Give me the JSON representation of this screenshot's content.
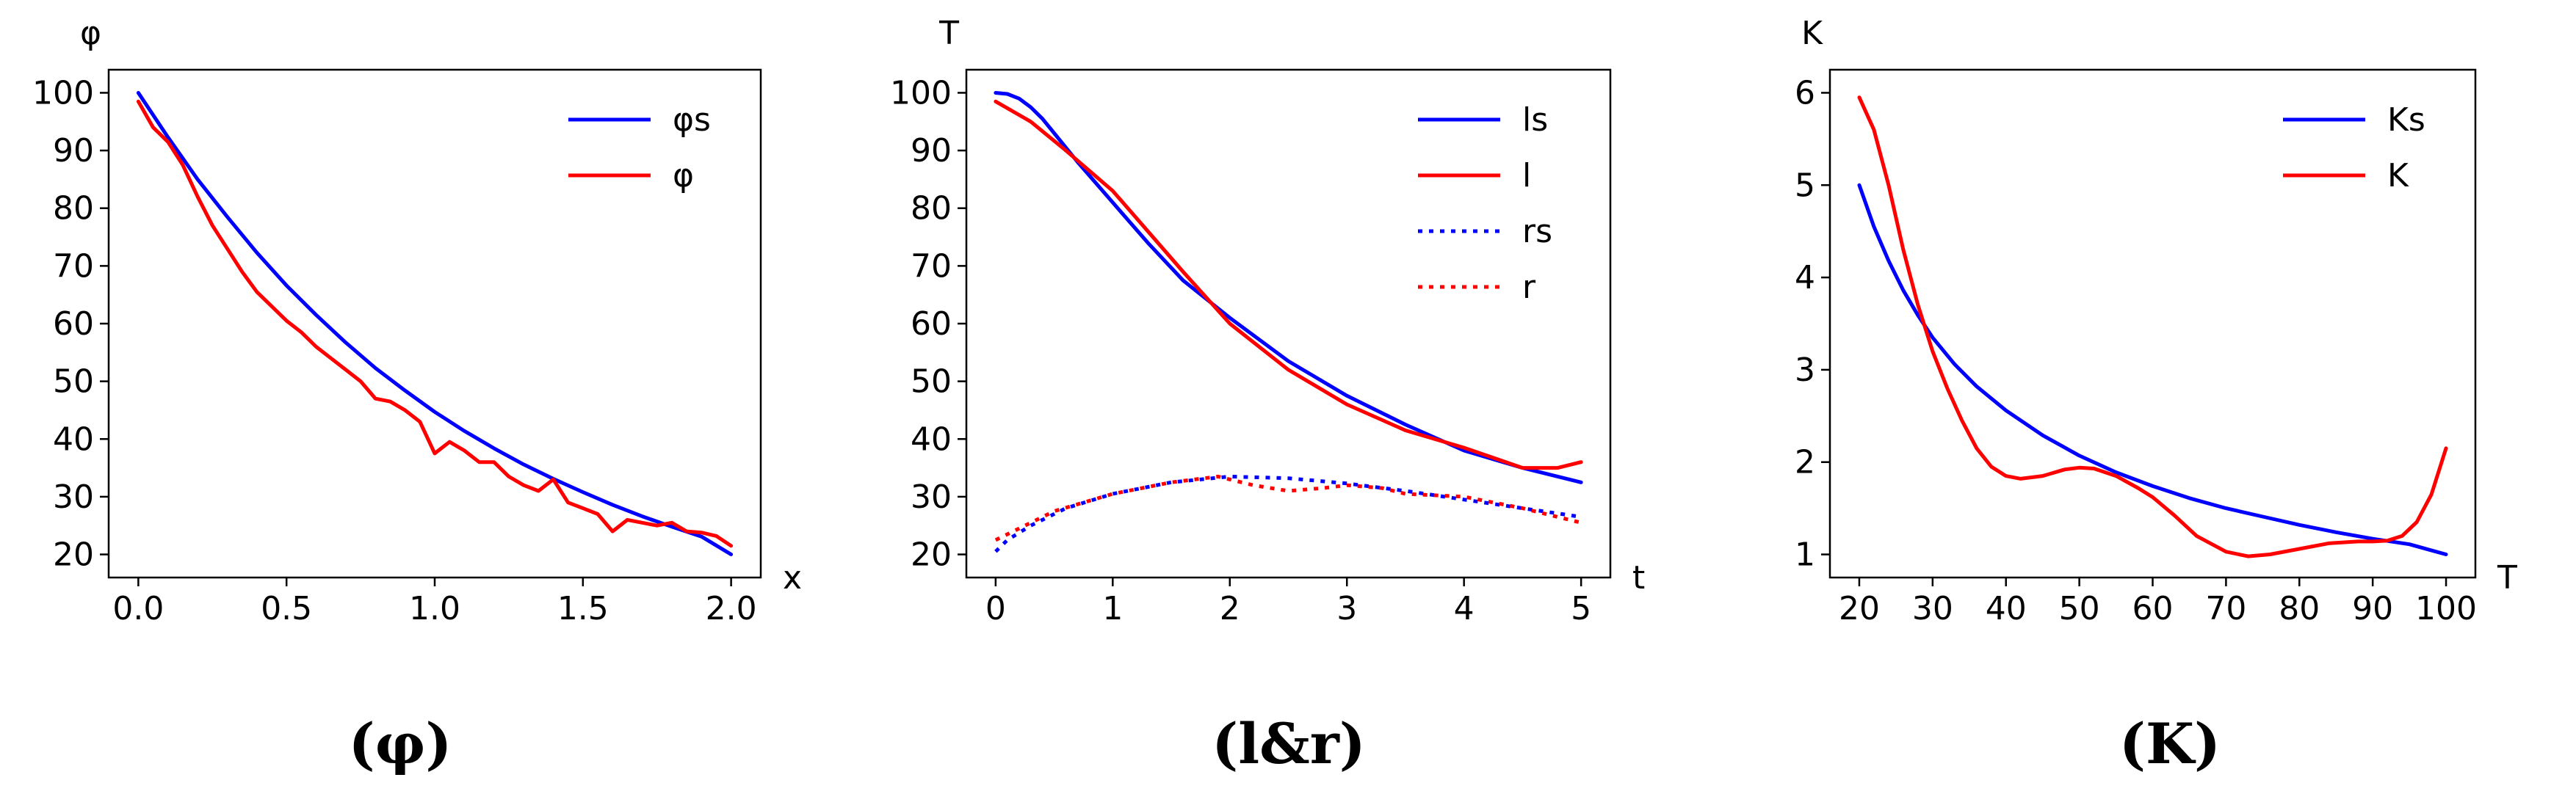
{
  "chart_data": [
    {
      "type": "line",
      "ylabel": "φ",
      "xlabel": "x",
      "caption": "(φ)",
      "xlim": [
        -0.1,
        2.1
      ],
      "ylim": [
        16,
        104
      ],
      "xticks": [
        0.0,
        0.5,
        1.0,
        1.5,
        2.0
      ],
      "xtick_labels": [
        "0.0",
        "0.5",
        "1.0",
        "1.5",
        "2.0"
      ],
      "yticks": [
        20,
        30,
        40,
        50,
        60,
        70,
        80,
        90,
        100
      ],
      "ytick_labels": [
        "20",
        "30",
        "40",
        "50",
        "60",
        "70",
        "80",
        "90",
        "100"
      ],
      "legend": "top-right",
      "series": [
        {
          "name": "φs",
          "color": "#0000ff",
          "style": "solid",
          "x": [
            0,
            0.1,
            0.2,
            0.3,
            0.4,
            0.5,
            0.6,
            0.7,
            0.8,
            0.9,
            1.0,
            1.1,
            1.2,
            1.3,
            1.4,
            1.5,
            1.6,
            1.7,
            1.8,
            1.9,
            2.0
          ],
          "y": [
            100,
            92.3,
            85,
            78.5,
            72.3,
            66.6,
            61.5,
            56.7,
            52.3,
            48.4,
            44.7,
            41.4,
            38.4,
            35.6,
            33.1,
            30.8,
            28.6,
            26.6,
            24.8,
            23.1,
            20
          ]
        },
        {
          "name": "φ",
          "color": "#ff0000",
          "style": "solid",
          "x": [
            0,
            0.05,
            0.1,
            0.15,
            0.2,
            0.25,
            0.3,
            0.35,
            0.4,
            0.45,
            0.5,
            0.55,
            0.6,
            0.65,
            0.7,
            0.75,
            0.8,
            0.85,
            0.9,
            0.95,
            1.0,
            1.05,
            1.1,
            1.15,
            1.2,
            1.25,
            1.3,
            1.35,
            1.4,
            1.45,
            1.5,
            1.55,
            1.6,
            1.65,
            1.7,
            1.75,
            1.8,
            1.85,
            1.9,
            1.95,
            2.0
          ],
          "y": [
            98.5,
            94,
            91.5,
            87.5,
            82,
            77,
            73,
            69,
            65.5,
            63,
            60.5,
            58.5,
            56,
            54,
            52,
            50,
            47,
            46.5,
            45,
            43,
            37.5,
            39.5,
            38,
            36,
            36,
            33.5,
            32,
            31,
            33,
            29,
            28,
            27,
            24,
            26,
            25.5,
            25,
            25.5,
            24,
            23.8,
            23.2,
            21.5
          ]
        }
      ]
    },
    {
      "type": "line",
      "ylabel": "T",
      "xlabel": "t",
      "caption": "(l&r)",
      "xlim": [
        -0.25,
        5.25
      ],
      "ylim": [
        16,
        104
      ],
      "xticks": [
        0,
        1,
        2,
        3,
        4,
        5
      ],
      "xtick_labels": [
        "0",
        "1",
        "2",
        "3",
        "4",
        "5"
      ],
      "yticks": [
        20,
        30,
        40,
        50,
        60,
        70,
        80,
        90,
        100
      ],
      "ytick_labels": [
        "20",
        "30",
        "40",
        "50",
        "60",
        "70",
        "80",
        "90",
        "100"
      ],
      "legend": "top-right",
      "series": [
        {
          "name": "ls",
          "color": "#0000ff",
          "style": "solid",
          "x": [
            0,
            0.1,
            0.2,
            0.3,
            0.4,
            0.5,
            0.7,
            1.0,
            1.3,
            1.6,
            2.0,
            2.5,
            3.0,
            3.5,
            4.0,
            4.5,
            5.0
          ],
          "y": [
            100,
            99.8,
            99,
            97.5,
            95.5,
            93,
            88,
            81,
            74,
            67.5,
            61,
            53.5,
            47.5,
            42.5,
            38,
            35,
            32.5
          ]
        },
        {
          "name": "l",
          "color": "#ff0000",
          "style": "solid",
          "x": [
            0,
            0.3,
            0.6,
            1.0,
            1.3,
            1.6,
            2.0,
            2.5,
            3.0,
            3.5,
            4.0,
            4.5,
            4.8,
            5.0
          ],
          "y": [
            98.5,
            95,
            90,
            83,
            76,
            69,
            60,
            52,
            46,
            41.5,
            38.5,
            35,
            35,
            36
          ]
        },
        {
          "name": "rs",
          "color": "#0000ff",
          "style": "dotted",
          "x": [
            0,
            0.1,
            0.3,
            0.6,
            1.0,
            1.5,
            2.0,
            2.5,
            3.0,
            3.5,
            4.0,
            4.5,
            5.0
          ],
          "y": [
            20.5,
            22.5,
            25,
            28,
            30.5,
            32.5,
            33.5,
            33.2,
            32.3,
            31,
            29.5,
            28,
            26.5
          ]
        },
        {
          "name": "r",
          "color": "#ff0000",
          "style": "dotted",
          "x": [
            0,
            0.2,
            0.5,
            1.0,
            1.5,
            1.9,
            2.2,
            2.5,
            2.8,
            3.0,
            3.3,
            3.5,
            4.0,
            4.5,
            5.0
          ],
          "y": [
            22.5,
            24.5,
            27.5,
            30.5,
            32.5,
            33.5,
            32,
            31,
            31.5,
            32,
            31.5,
            30.5,
            30,
            28,
            25.5
          ]
        }
      ]
    },
    {
      "type": "line",
      "ylabel": "K",
      "xlabel": "T",
      "caption": "(K)",
      "xlim": [
        16,
        104
      ],
      "ylim": [
        0.75,
        6.25
      ],
      "xticks": [
        20,
        30,
        40,
        50,
        60,
        70,
        80,
        90,
        100
      ],
      "xtick_labels": [
        "20",
        "30",
        "40",
        "50",
        "60",
        "70",
        "80",
        "90",
        "100"
      ],
      "yticks": [
        1,
        2,
        3,
        4,
        5,
        6
      ],
      "ytick_labels": [
        "1",
        "2",
        "3",
        "4",
        "5",
        "6"
      ],
      "legend": "top-right",
      "series": [
        {
          "name": "Ks",
          "color": "#0000ff",
          "style": "solid",
          "x": [
            20,
            22,
            24,
            26,
            28,
            30,
            33,
            36,
            40,
            45,
            50,
            55,
            60,
            65,
            70,
            75,
            80,
            85,
            90,
            95,
            100
          ],
          "y": [
            5,
            4.55,
            4.18,
            3.86,
            3.59,
            3.35,
            3.06,
            2.82,
            2.56,
            2.29,
            2.07,
            1.89,
            1.74,
            1.61,
            1.5,
            1.41,
            1.32,
            1.24,
            1.17,
            1.11,
            1
          ]
        },
        {
          "name": "K",
          "color": "#ff0000",
          "style": "solid",
          "x": [
            20,
            22,
            24,
            26,
            28,
            30,
            32,
            34,
            36,
            38,
            40,
            42,
            45,
            48,
            50,
            52,
            55,
            58,
            60,
            63,
            66,
            70,
            73,
            76,
            80,
            84,
            88,
            90,
            92,
            94,
            96,
            98,
            100
          ],
          "y": [
            5.95,
            5.6,
            5,
            4.3,
            3.7,
            3.2,
            2.8,
            2.45,
            2.15,
            1.95,
            1.85,
            1.82,
            1.85,
            1.92,
            1.94,
            1.93,
            1.85,
            1.72,
            1.62,
            1.42,
            1.2,
            1.03,
            0.98,
            1.0,
            1.06,
            1.12,
            1.14,
            1.14,
            1.15,
            1.2,
            1.35,
            1.65,
            2.15
          ]
        }
      ]
    }
  ]
}
